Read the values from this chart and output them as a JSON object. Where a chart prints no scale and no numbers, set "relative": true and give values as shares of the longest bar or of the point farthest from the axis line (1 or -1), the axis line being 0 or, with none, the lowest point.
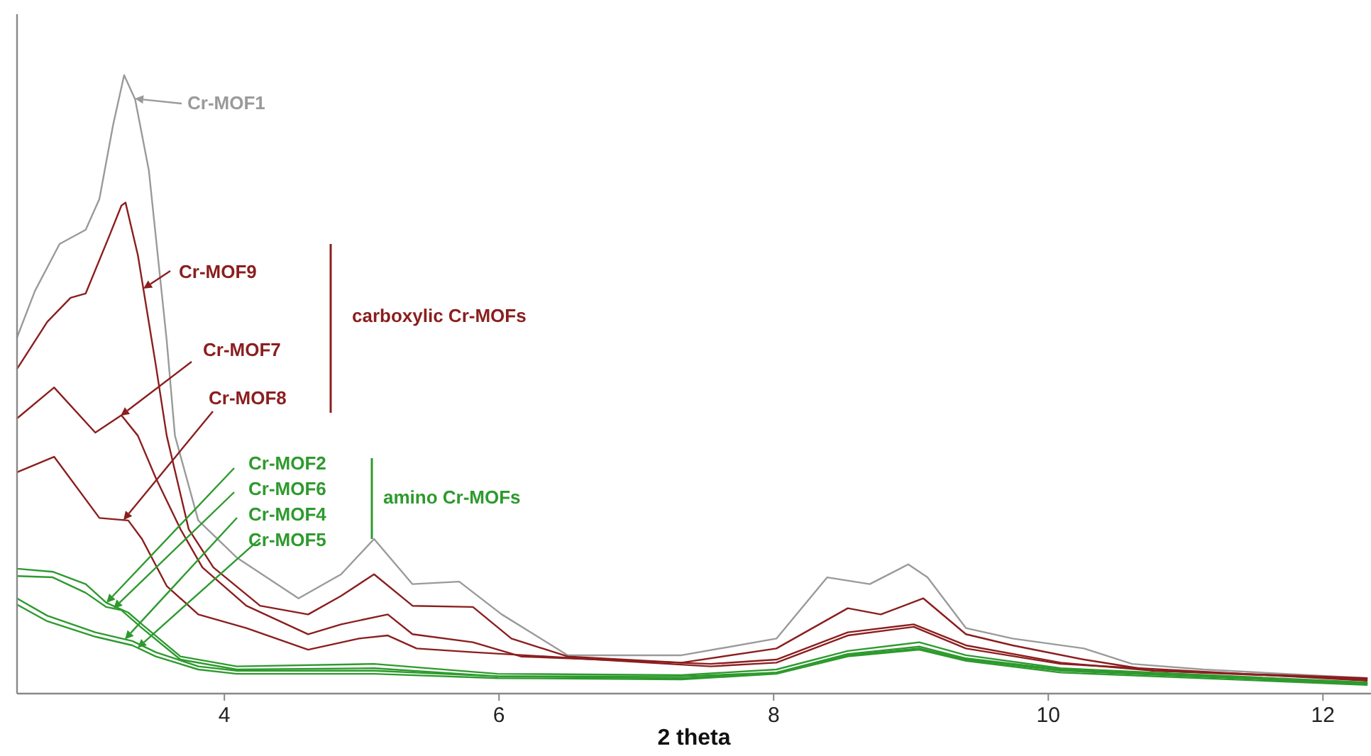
{
  "chart_data": {
    "type": "line",
    "relative": true,
    "xlabel": "2 theta",
    "xlim": [
      2.49,
      12.35
    ],
    "xticks": [
      4,
      6,
      8,
      10,
      12
    ],
    "grid": false,
    "legend": "top left",
    "marker": "none",
    "line_style": "solid",
    "annotations": [
      "carboxylic Cr-MOFs",
      "amino Cr-MOFs"
    ],
    "series": [
      {
        "name": "Cr-MOF1",
        "color": "#9a9a9a",
        "x": [
          2.49,
          2.62,
          2.8,
          2.99,
          3.09,
          3.19,
          3.27,
          3.35,
          3.45,
          3.58,
          3.64,
          3.81,
          4.09,
          4.54,
          4.85,
          5.09,
          5.37,
          5.71,
          6.02,
          6.5,
          7.33,
          8.02,
          8.39,
          8.7,
          8.98,
          9.12,
          9.4,
          9.74,
          10.26,
          10.61,
          11.13,
          12.32
        ],
        "values": [
          0.576,
          0.651,
          0.727,
          0.75,
          0.8,
          0.92,
          1.0,
          0.961,
          0.846,
          0.571,
          0.417,
          0.28,
          0.22,
          0.154,
          0.193,
          0.25,
          0.177,
          0.181,
          0.128,
          0.062,
          0.062,
          0.089,
          0.188,
          0.177,
          0.209,
          0.188,
          0.106,
          0.089,
          0.073,
          0.048,
          0.039,
          0.025
        ]
      },
      {
        "name": "Cr-MOF9",
        "color": "#8b1e1e",
        "x": [
          2.49,
          2.71,
          2.88,
          2.99,
          3.16,
          3.25,
          3.28,
          3.37,
          3.5,
          3.58,
          3.74,
          3.92,
          4.26,
          4.61,
          4.85,
          5.09,
          5.37,
          5.81,
          6.09,
          6.5,
          7.33,
          8.02,
          8.54,
          8.78,
          9.09,
          9.4,
          9.74,
          10.26,
          10.77,
          12.32
        ],
        "values": [
          0.525,
          0.601,
          0.64,
          0.647,
          0.739,
          0.789,
          0.794,
          0.709,
          0.532,
          0.417,
          0.266,
          0.204,
          0.142,
          0.128,
          0.158,
          0.193,
          0.142,
          0.14,
          0.089,
          0.06,
          0.05,
          0.073,
          0.138,
          0.128,
          0.154,
          0.096,
          0.078,
          0.055,
          0.037,
          0.025
        ]
      },
      {
        "name": "Cr-MOF7",
        "color": "#8b1e1e",
        "x": [
          2.49,
          2.76,
          3.06,
          3.25,
          3.37,
          3.5,
          3.68,
          3.84,
          4.16,
          4.61,
          4.85,
          5.19,
          5.37,
          5.81,
          6.16,
          7.54,
          8.02,
          8.54,
          9.02,
          9.4,
          10.09,
          10.77,
          12.32
        ],
        "values": [
          0.445,
          0.495,
          0.422,
          0.45,
          0.417,
          0.349,
          0.266,
          0.204,
          0.142,
          0.096,
          0.112,
          0.128,
          0.096,
          0.083,
          0.06,
          0.048,
          0.055,
          0.099,
          0.112,
          0.078,
          0.05,
          0.037,
          0.023
        ]
      },
      {
        "name": "Cr-MOF8",
        "color": "#8b1e1e",
        "x": [
          2.49,
          2.76,
          3.09,
          3.3,
          3.4,
          3.58,
          3.81,
          4.16,
          4.61,
          4.98,
          5.19,
          5.4,
          5.81,
          7.54,
          8.02,
          8.54,
          9.02,
          9.4,
          10.09,
          12.32
        ],
        "values": [
          0.358,
          0.383,
          0.284,
          0.28,
          0.25,
          0.174,
          0.128,
          0.106,
          0.071,
          0.089,
          0.094,
          0.073,
          0.067,
          0.044,
          0.05,
          0.094,
          0.108,
          0.073,
          0.048,
          0.021
        ]
      },
      {
        "name": "Cr-MOF2",
        "color": "#2e9a2e",
        "x": [
          2.49,
          2.75,
          2.99,
          3.14,
          3.3,
          3.4,
          3.68,
          4.09,
          5.09,
          5.99,
          7.33,
          8.02,
          8.54,
          9.06,
          9.4,
          10.09,
          12.32
        ],
        "values": [
          0.202,
          0.197,
          0.177,
          0.147,
          0.131,
          0.112,
          0.06,
          0.044,
          0.048,
          0.032,
          0.03,
          0.039,
          0.069,
          0.083,
          0.062,
          0.041,
          0.018
        ]
      },
      {
        "name": "Cr-MOF6",
        "color": "#2e9a2e",
        "x": [
          2.49,
          2.75,
          2.99,
          3.14,
          3.25,
          3.4,
          3.68,
          4.09,
          5.09,
          5.99,
          7.33,
          8.02,
          8.54,
          9.06,
          9.4,
          10.09,
          12.32
        ],
        "values": [
          0.19,
          0.188,
          0.163,
          0.14,
          0.135,
          0.106,
          0.055,
          0.039,
          0.041,
          0.028,
          0.028,
          0.034,
          0.064,
          0.076,
          0.057,
          0.039,
          0.016
        ]
      },
      {
        "name": "Cr-MOF4",
        "color": "#2e9a2e",
        "x": [
          2.49,
          2.71,
          3.06,
          3.33,
          3.5,
          3.81,
          4.09,
          5.09,
          5.99,
          7.33,
          8.02,
          8.54,
          9.06,
          9.4,
          10.09,
          12.32
        ],
        "values": [
          0.154,
          0.126,
          0.099,
          0.085,
          0.067,
          0.044,
          0.037,
          0.037,
          0.028,
          0.025,
          0.034,
          0.062,
          0.073,
          0.055,
          0.037,
          0.016
        ]
      },
      {
        "name": "Cr-MOF5",
        "color": "#2e9a2e",
        "x": [
          2.49,
          2.71,
          3.06,
          3.33,
          3.5,
          3.81,
          4.09,
          5.09,
          5.99,
          7.33,
          8.02,
          8.54,
          9.06,
          9.4,
          10.09,
          12.32
        ],
        "values": [
          0.144,
          0.117,
          0.092,
          0.078,
          0.06,
          0.039,
          0.032,
          0.032,
          0.025,
          0.023,
          0.032,
          0.06,
          0.071,
          0.053,
          0.034,
          0.014
        ]
      }
    ]
  }
}
